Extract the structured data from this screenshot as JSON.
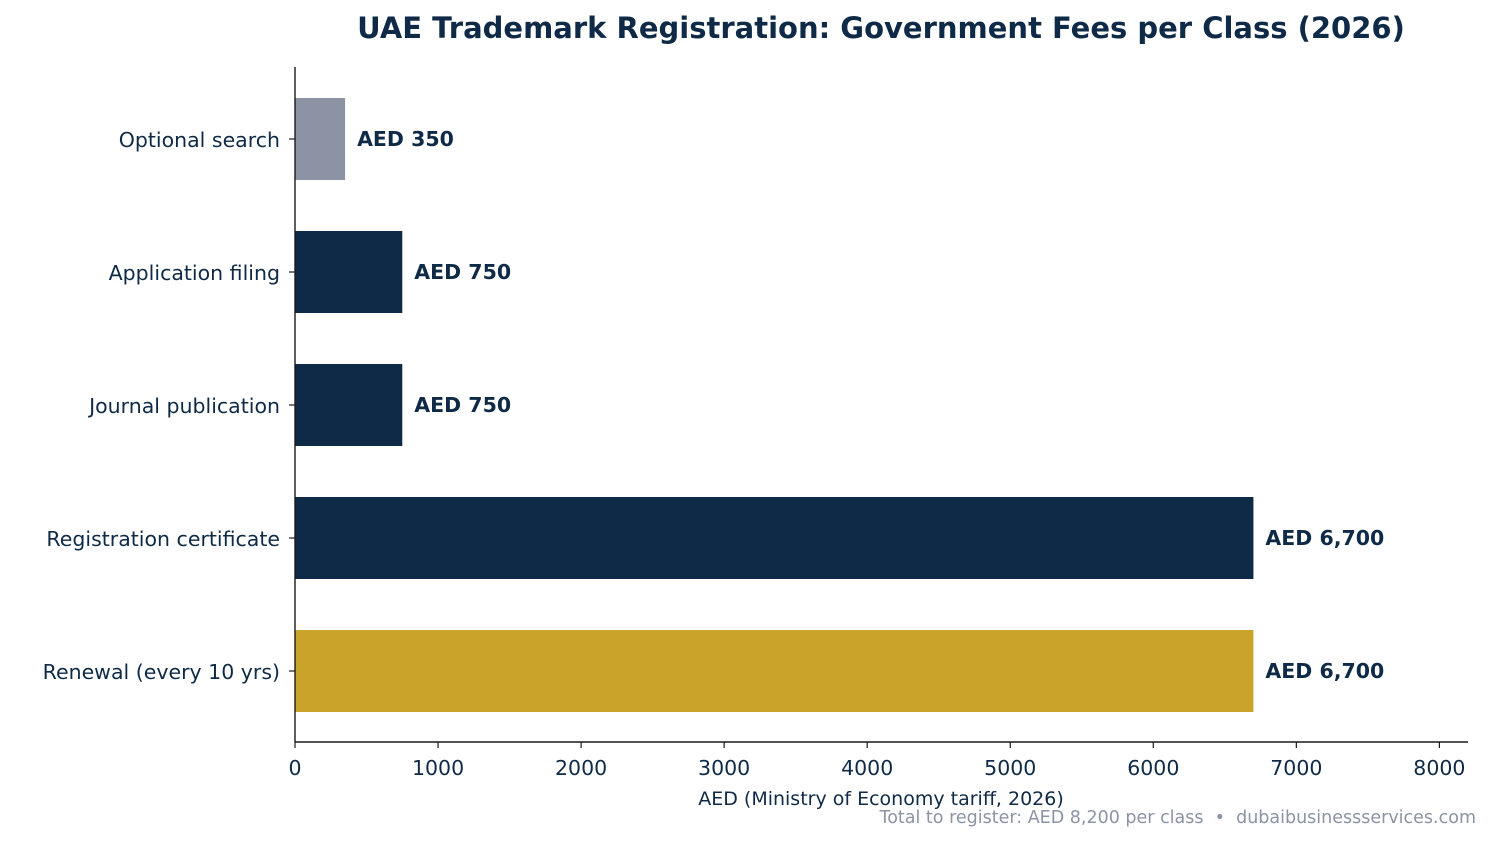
{
  "chart_data": {
    "type": "bar",
    "orientation": "horizontal",
    "title": "UAE Trademark Registration: Government Fees per Class (2026)",
    "xlabel": "AED (Ministry of Economy tariff, 2026)",
    "ylabel": "",
    "categories": [
      "Optional search",
      "Application filing",
      "Journal publication",
      "Registration certificate",
      "Renewal (every 10 yrs)"
    ],
    "values": [
      350,
      750,
      750,
      6700,
      6700
    ],
    "value_labels": [
      "AED 350",
      "AED 750",
      "AED 750",
      "AED 6,700",
      "AED 6,700"
    ],
    "bar_colors": [
      "#8b93a5",
      "#0f2a47",
      "#0f2a47",
      "#0f2a47",
      "#c9a32a"
    ],
    "xlim": [
      0,
      8200
    ],
    "xticks": [
      0,
      1000,
      2000,
      3000,
      4000,
      5000,
      6000,
      7000,
      8000
    ],
    "xtick_labels": [
      "0",
      "1000",
      "2000",
      "3000",
      "4000",
      "5000",
      "6000",
      "7000",
      "8000"
    ],
    "grid": false,
    "footer": "Total to register: AED 8,200 per class  •  dubaibusinessservices.com"
  },
  "colors": {
    "text": "#0f2a47",
    "axis": "#1a1a1a",
    "footer": "#8b93a5"
  }
}
